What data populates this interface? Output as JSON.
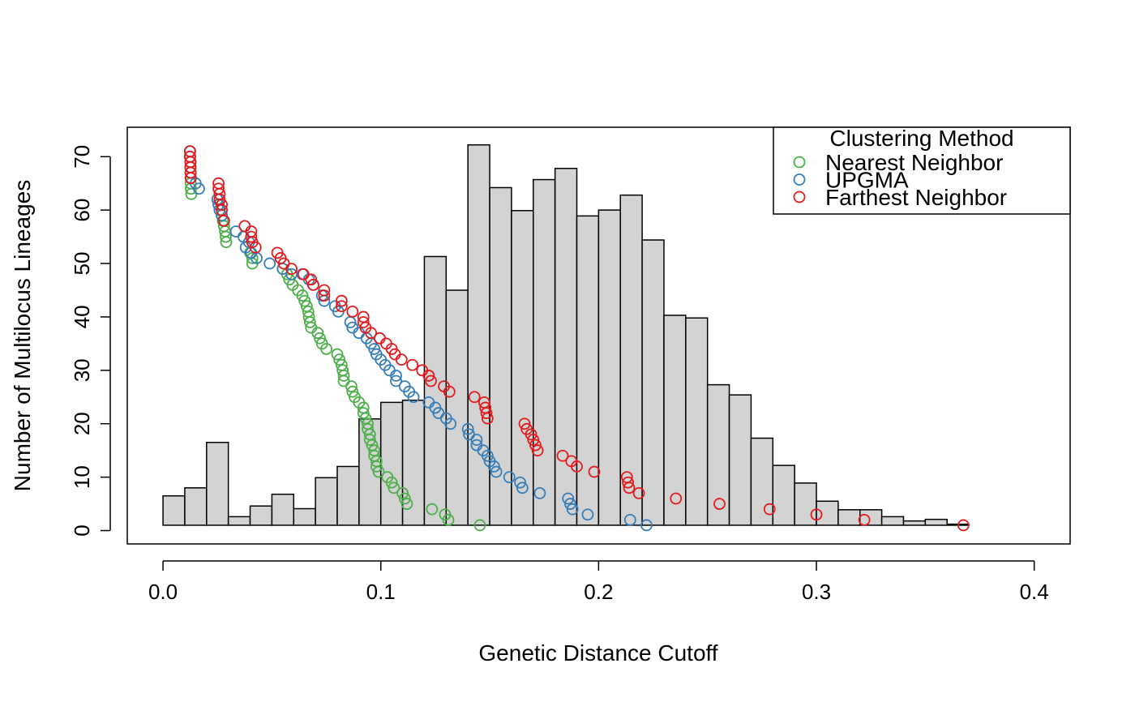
{
  "chart_data": {
    "type": "scatter",
    "title": "",
    "xlabel": "Genetic Distance Cutoff",
    "ylabel": "Number of Multilocus Lineages",
    "xlim": [
      -0.0164,
      0.4165
    ],
    "ylim": [
      -2.5,
      75.5
    ],
    "x_ticks": [
      0.0,
      0.1,
      0.2,
      0.3,
      0.4
    ],
    "x_tick_labels": [
      "0.0",
      "0.1",
      "0.2",
      "0.3",
      "0.4"
    ],
    "y_ticks": [
      0,
      10,
      20,
      30,
      40,
      50,
      60,
      70
    ],
    "y_tick_labels": [
      "0",
      "10",
      "20",
      "30",
      "40",
      "50",
      "60",
      "70"
    ],
    "grid": false,
    "legend": {
      "title": "Clustering Method",
      "placement": "top-right",
      "entries": [
        "Nearest Neighbor",
        "UPGMA",
        "Farthest Neighbor"
      ]
    },
    "histogram": {
      "fill": "#d3d3d3",
      "stroke": "#000000",
      "baseline": 1,
      "bins": [
        {
          "x0": 0.0,
          "x1": 0.01,
          "top": 6.5
        },
        {
          "x0": 0.01,
          "x1": 0.02,
          "top": 8.0
        },
        {
          "x0": 0.02,
          "x1": 0.03,
          "top": 16.5
        },
        {
          "x0": 0.03,
          "x1": 0.04,
          "top": 2.6
        },
        {
          "x0": 0.04,
          "x1": 0.05,
          "top": 4.6
        },
        {
          "x0": 0.05,
          "x1": 0.06,
          "top": 6.8
        },
        {
          "x0": 0.06,
          "x1": 0.07,
          "top": 4.1
        },
        {
          "x0": 0.07,
          "x1": 0.08,
          "top": 9.9
        },
        {
          "x0": 0.08,
          "x1": 0.09,
          "top": 12.0
        },
        {
          "x0": 0.09,
          "x1": 0.1,
          "top": 20.9
        },
        {
          "x0": 0.1,
          "x1": 0.11,
          "top": 24.0
        },
        {
          "x0": 0.11,
          "x1": 0.12,
          "top": 24.4
        },
        {
          "x0": 0.12,
          "x1": 0.13,
          "top": 51.3
        },
        {
          "x0": 0.13,
          "x1": 0.14,
          "top": 45.0
        },
        {
          "x0": 0.14,
          "x1": 0.15,
          "top": 72.2
        },
        {
          "x0": 0.15,
          "x1": 0.16,
          "top": 64.2
        },
        {
          "x0": 0.16,
          "x1": 0.17,
          "top": 59.9
        },
        {
          "x0": 0.17,
          "x1": 0.18,
          "top": 65.7
        },
        {
          "x0": 0.18,
          "x1": 0.19,
          "top": 67.8
        },
        {
          "x0": 0.19,
          "x1": 0.2,
          "top": 58.9
        },
        {
          "x0": 0.2,
          "x1": 0.21,
          "top": 60.0
        },
        {
          "x0": 0.21,
          "x1": 0.22,
          "top": 62.8
        },
        {
          "x0": 0.22,
          "x1": 0.23,
          "top": 54.4
        },
        {
          "x0": 0.23,
          "x1": 0.24,
          "top": 40.3
        },
        {
          "x0": 0.24,
          "x1": 0.25,
          "top": 39.8
        },
        {
          "x0": 0.25,
          "x1": 0.26,
          "top": 27.3
        },
        {
          "x0": 0.26,
          "x1": 0.27,
          "top": 25.4
        },
        {
          "x0": 0.27,
          "x1": 0.28,
          "top": 17.3
        },
        {
          "x0": 0.28,
          "x1": 0.29,
          "top": 12.2
        },
        {
          "x0": 0.29,
          "x1": 0.3,
          "top": 8.9
        },
        {
          "x0": 0.3,
          "x1": 0.31,
          "top": 5.5
        },
        {
          "x0": 0.31,
          "x1": 0.32,
          "top": 3.9
        },
        {
          "x0": 0.32,
          "x1": 0.33,
          "top": 3.9
        },
        {
          "x0": 0.33,
          "x1": 0.34,
          "top": 2.6
        },
        {
          "x0": 0.34,
          "x1": 0.35,
          "top": 1.8
        },
        {
          "x0": 0.35,
          "x1": 0.36,
          "top": 2.1
        },
        {
          "x0": 0.36,
          "x1": 0.37,
          "top": 1.2
        }
      ]
    },
    "series": [
      {
        "name": "Nearest Neighbor",
        "color": "#4daf4a",
        "points": [
          [
            0.0124,
            71
          ],
          [
            0.0124,
            70
          ],
          [
            0.0126,
            69
          ],
          [
            0.0126,
            68
          ],
          [
            0.0126,
            67
          ],
          [
            0.0127,
            66
          ],
          [
            0.0127,
            65
          ],
          [
            0.0128,
            64
          ],
          [
            0.013,
            63
          ],
          [
            0.025,
            62
          ],
          [
            0.0255,
            61
          ],
          [
            0.026,
            60
          ],
          [
            0.027,
            59
          ],
          [
            0.0275,
            58
          ],
          [
            0.028,
            57
          ],
          [
            0.0285,
            56
          ],
          [
            0.0288,
            55
          ],
          [
            0.029,
            54
          ],
          [
            0.04,
            52
          ],
          [
            0.041,
            51
          ],
          [
            0.041,
            50
          ],
          [
            0.055,
            49
          ],
          [
            0.057,
            48
          ],
          [
            0.058,
            47
          ],
          [
            0.0595,
            46
          ],
          [
            0.062,
            45
          ],
          [
            0.064,
            44
          ],
          [
            0.065,
            43
          ],
          [
            0.066,
            42
          ],
          [
            0.0667,
            41
          ],
          [
            0.067,
            40
          ],
          [
            0.0675,
            39
          ],
          [
            0.068,
            38
          ],
          [
            0.071,
            37
          ],
          [
            0.072,
            36
          ],
          [
            0.073,
            35
          ],
          [
            0.075,
            34
          ],
          [
            0.08,
            33
          ],
          [
            0.081,
            32
          ],
          [
            0.082,
            31
          ],
          [
            0.0825,
            30
          ],
          [
            0.083,
            29
          ],
          [
            0.083,
            28
          ],
          [
            0.0865,
            27
          ],
          [
            0.087,
            26
          ],
          [
            0.088,
            25
          ],
          [
            0.09,
            24
          ],
          [
            0.092,
            23
          ],
          [
            0.092,
            22
          ],
          [
            0.093,
            21
          ],
          [
            0.094,
            20
          ],
          [
            0.094,
            19
          ],
          [
            0.095,
            18
          ],
          [
            0.095,
            17
          ],
          [
            0.096,
            16
          ],
          [
            0.097,
            15
          ],
          [
            0.097,
            14
          ],
          [
            0.098,
            13
          ],
          [
            0.098,
            12
          ],
          [
            0.099,
            11
          ],
          [
            0.103,
            10
          ],
          [
            0.105,
            9
          ],
          [
            0.106,
            8
          ],
          [
            0.11,
            7
          ],
          [
            0.111,
            6
          ],
          [
            0.112,
            5
          ],
          [
            0.1235,
            4
          ],
          [
            0.1295,
            3
          ],
          [
            0.131,
            2
          ],
          [
            0.1455,
            1
          ]
        ]
      },
      {
        "name": "UPGMA",
        "color": "#377eb8",
        "points": [
          [
            0.0124,
            71
          ],
          [
            0.0124,
            70
          ],
          [
            0.0126,
            69
          ],
          [
            0.0126,
            68
          ],
          [
            0.0127,
            67
          ],
          [
            0.0128,
            66
          ],
          [
            0.015,
            65
          ],
          [
            0.0165,
            64
          ],
          [
            0.025,
            62
          ],
          [
            0.0255,
            61
          ],
          [
            0.026,
            60
          ],
          [
            0.027,
            59
          ],
          [
            0.028,
            58
          ],
          [
            0.0335,
            56
          ],
          [
            0.037,
            55
          ],
          [
            0.038,
            53
          ],
          [
            0.0395,
            54
          ],
          [
            0.0405,
            52
          ],
          [
            0.043,
            51
          ],
          [
            0.049,
            50
          ],
          [
            0.055,
            49
          ],
          [
            0.059,
            48
          ],
          [
            0.064,
            48
          ],
          [
            0.067,
            47
          ],
          [
            0.069,
            46
          ],
          [
            0.073,
            44
          ],
          [
            0.074,
            43
          ],
          [
            0.079,
            42
          ],
          [
            0.0805,
            41
          ],
          [
            0.086,
            39
          ],
          [
            0.087,
            38
          ],
          [
            0.09,
            37
          ],
          [
            0.0935,
            36
          ],
          [
            0.0955,
            35
          ],
          [
            0.097,
            34
          ],
          [
            0.098,
            33
          ],
          [
            0.1,
            32
          ],
          [
            0.102,
            31
          ],
          [
            0.104,
            30
          ],
          [
            0.107,
            29
          ],
          [
            0.107,
            28
          ],
          [
            0.111,
            27
          ],
          [
            0.113,
            26
          ],
          [
            0.115,
            25
          ],
          [
            0.122,
            24
          ],
          [
            0.125,
            23
          ],
          [
            0.1265,
            22
          ],
          [
            0.13,
            21
          ],
          [
            0.132,
            20
          ],
          [
            0.14,
            19
          ],
          [
            0.1405,
            18
          ],
          [
            0.144,
            17
          ],
          [
            0.144,
            16
          ],
          [
            0.147,
            15
          ],
          [
            0.149,
            14
          ],
          [
            0.15,
            13
          ],
          [
            0.152,
            12
          ],
          [
            0.153,
            11
          ],
          [
            0.159,
            10
          ],
          [
            0.164,
            9
          ],
          [
            0.165,
            8
          ],
          [
            0.173,
            7
          ],
          [
            0.186,
            6
          ],
          [
            0.187,
            5
          ],
          [
            0.188,
            4
          ],
          [
            0.195,
            3
          ],
          [
            0.2145,
            2
          ],
          [
            0.222,
            1
          ]
        ]
      },
      {
        "name": "Farthest Neighbor",
        "color": "#e41a1c",
        "points": [
          [
            0.0124,
            71
          ],
          [
            0.0124,
            70
          ],
          [
            0.0126,
            69
          ],
          [
            0.0126,
            68
          ],
          [
            0.0127,
            67
          ],
          [
            0.0127,
            66
          ],
          [
            0.0255,
            65
          ],
          [
            0.0255,
            64
          ],
          [
            0.026,
            63
          ],
          [
            0.026,
            62
          ],
          [
            0.027,
            61
          ],
          [
            0.027,
            60
          ],
          [
            0.028,
            58
          ],
          [
            0.0375,
            57
          ],
          [
            0.0405,
            56
          ],
          [
            0.0405,
            55
          ],
          [
            0.041,
            54
          ],
          [
            0.0425,
            53
          ],
          [
            0.0525,
            52
          ],
          [
            0.054,
            51
          ],
          [
            0.0555,
            50
          ],
          [
            0.059,
            49
          ],
          [
            0.0645,
            48
          ],
          [
            0.068,
            47
          ],
          [
            0.069,
            46
          ],
          [
            0.074,
            45
          ],
          [
            0.074,
            44
          ],
          [
            0.082,
            43
          ],
          [
            0.082,
            42
          ],
          [
            0.087,
            41
          ],
          [
            0.092,
            40
          ],
          [
            0.092,
            39
          ],
          [
            0.093,
            38
          ],
          [
            0.0955,
            37
          ],
          [
            0.0995,
            36
          ],
          [
            0.1025,
            35
          ],
          [
            0.105,
            34
          ],
          [
            0.1065,
            33
          ],
          [
            0.1095,
            32
          ],
          [
            0.1145,
            31
          ],
          [
            0.119,
            30
          ],
          [
            0.122,
            29
          ],
          [
            0.123,
            28
          ],
          [
            0.129,
            27
          ],
          [
            0.1315,
            26
          ],
          [
            0.143,
            25
          ],
          [
            0.1475,
            24
          ],
          [
            0.148,
            23
          ],
          [
            0.1485,
            22
          ],
          [
            0.149,
            21
          ],
          [
            0.166,
            20
          ],
          [
            0.167,
            19
          ],
          [
            0.169,
            18
          ],
          [
            0.17,
            17
          ],
          [
            0.171,
            16
          ],
          [
            0.172,
            15
          ],
          [
            0.1835,
            14
          ],
          [
            0.1875,
            13
          ],
          [
            0.19,
            12
          ],
          [
            0.198,
            11
          ],
          [
            0.213,
            10
          ],
          [
            0.2135,
            9
          ],
          [
            0.214,
            8
          ],
          [
            0.2185,
            7
          ],
          [
            0.2355,
            6
          ],
          [
            0.2555,
            5
          ],
          [
            0.2785,
            4
          ],
          [
            0.3,
            3
          ],
          [
            0.322,
            2
          ],
          [
            0.3675,
            1
          ]
        ]
      }
    ]
  }
}
